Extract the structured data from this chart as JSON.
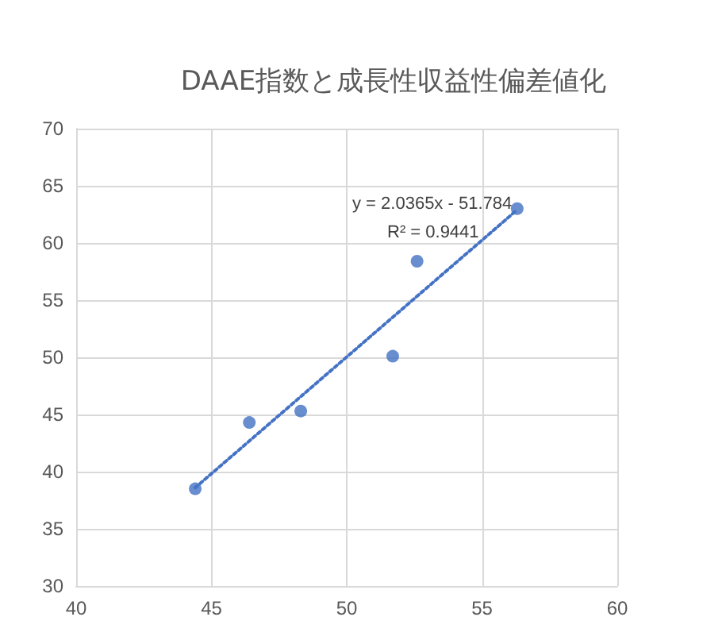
{
  "chart_data": {
    "type": "scatter",
    "title": "DAAE指数と成長性収益性偏差値化",
    "series": [
      {
        "color": "#4472c4",
        "x": [
          44.4,
          46.4,
          48.3,
          51.7,
          52.6,
          56.3
        ],
        "values": [
          38.5,
          44.3,
          45.3,
          50.1,
          58.4,
          63.0
        ],
        "marker": "circle"
      },
      {
        "type": "line",
        "color": "#4472c4",
        "x": [
          44.4,
          56.3
        ],
        "values": [
          38.6,
          62.9
        ],
        "line_style": "dotted",
        "marker": "none"
      }
    ],
    "annotations": [
      "y = 2.0365x - 51.784",
      "R² = 0.9441"
    ],
    "xlim": [
      40,
      60
    ],
    "xticks": [
      40,
      45,
      50,
      55,
      60
    ],
    "ylim": [
      30,
      70
    ],
    "yticks": [
      30,
      35,
      40,
      45,
      50,
      55,
      60,
      65,
      70
    ],
    "grid": true
  }
}
